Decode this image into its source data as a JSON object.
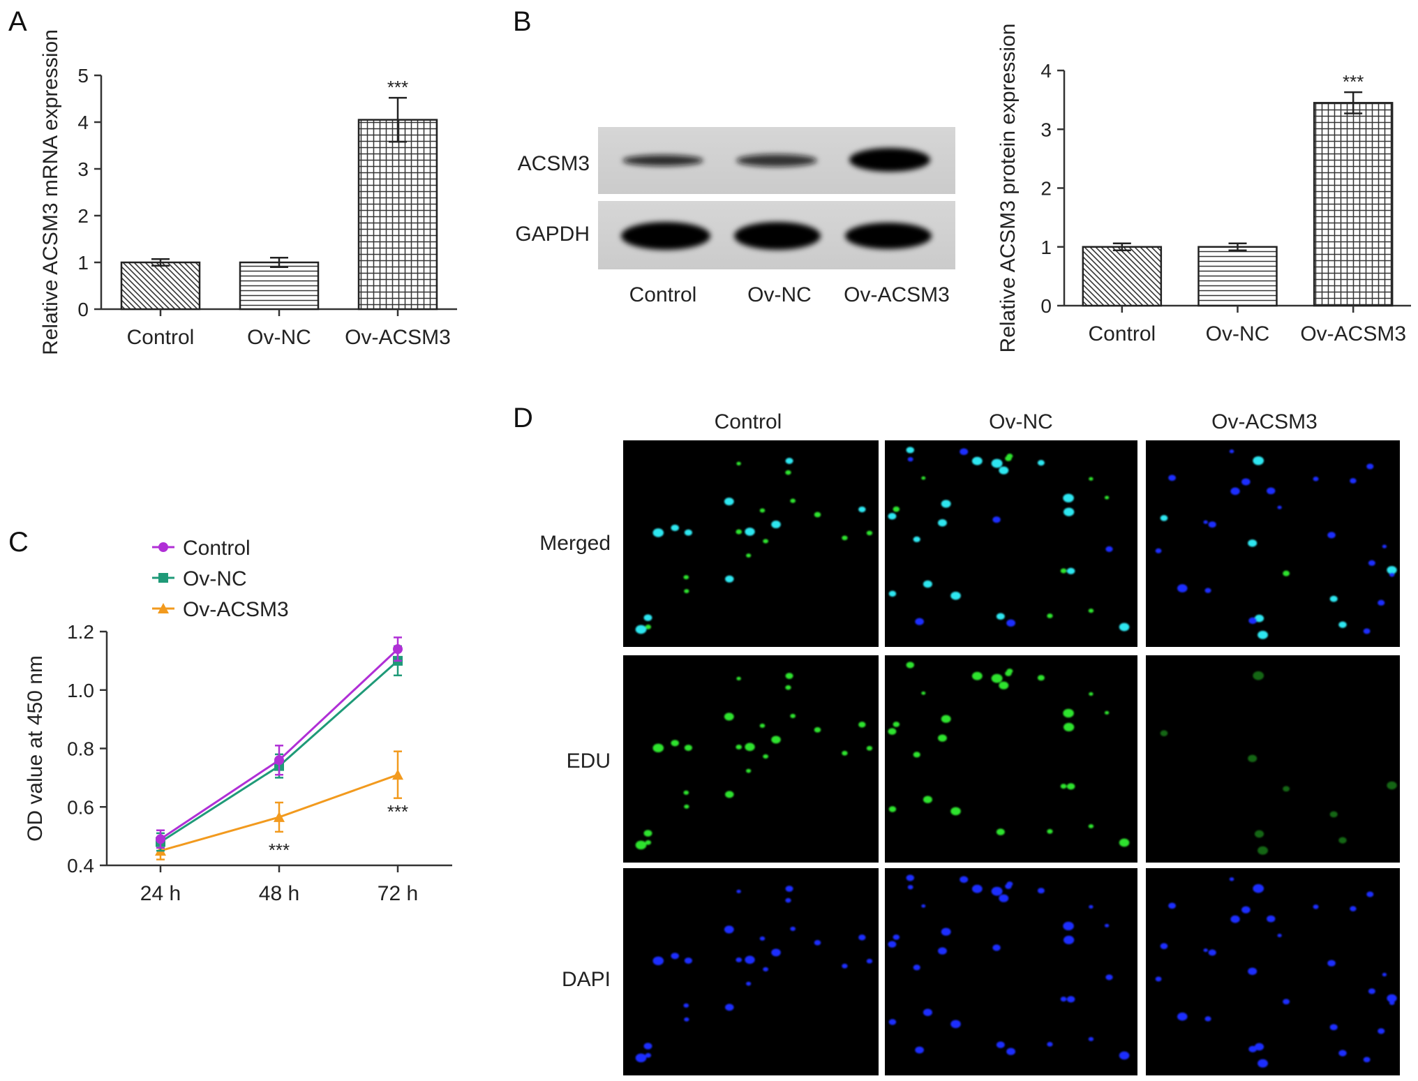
{
  "panels": {
    "A": {
      "letter": "A"
    },
    "B": {
      "letter": "B"
    },
    "C": {
      "letter": "C"
    },
    "D": {
      "letter": "D"
    }
  },
  "western_blot": {
    "rows": [
      "ACSM3",
      "GAPDH"
    ],
    "lanes": [
      "Control",
      "Ov-NC",
      "Ov-ACSM3"
    ]
  },
  "edu_panel": {
    "columns": [
      "Control",
      "Ov-NC",
      "Ov-ACSM3"
    ],
    "rows": [
      "Merged",
      "EDU",
      "DAPI"
    ]
  },
  "colors": {
    "control_line": "#b02fd6",
    "ovnc_line": "#1f9a78",
    "ovacsm3_line": "#f29a1e",
    "edu_green": "#2fe32f",
    "dapi_blue": "#1f2fff",
    "merged_cyan": "#2fe6f0"
  },
  "chart_data": [
    {
      "id": "A",
      "type": "bar",
      "categories": [
        "Control",
        "Ov-NC",
        "Ov-ACSM3"
      ],
      "values": [
        1.0,
        1.0,
        4.05
      ],
      "errors": [
        0.07,
        0.1,
        0.47
      ],
      "patterns": [
        "diagonal",
        "horizontal",
        "grid"
      ],
      "significance": [
        "",
        "",
        "***"
      ],
      "ylabel": "Relative ACSM3 mRNA expression",
      "ylim": [
        0,
        5
      ],
      "yticks": [
        0,
        1,
        2,
        3,
        4,
        5
      ]
    },
    {
      "id": "B",
      "type": "bar",
      "categories": [
        "Control",
        "Ov-NC",
        "Ov-ACSM3"
      ],
      "values": [
        1.0,
        1.0,
        3.45
      ],
      "errors": [
        0.06,
        0.06,
        0.18
      ],
      "patterns": [
        "diagonal",
        "horizontal",
        "grid"
      ],
      "significance": [
        "",
        "",
        "***"
      ],
      "ylabel": "Relative ACSM3 protein expression",
      "ylim": [
        0,
        4
      ],
      "yticks": [
        0,
        1,
        2,
        3,
        4
      ]
    },
    {
      "id": "C",
      "type": "line",
      "x": [
        "24 h",
        "48 h",
        "72 h"
      ],
      "series": [
        {
          "name": "Control",
          "values": [
            0.49,
            0.76,
            1.14
          ],
          "errors": [
            0.03,
            0.05,
            0.04
          ],
          "marker": "circle"
        },
        {
          "name": "Ov-NC",
          "values": [
            0.48,
            0.74,
            1.1
          ],
          "errors": [
            0.03,
            0.04,
            0.05
          ],
          "marker": "square"
        },
        {
          "name": "Ov-ACSM3",
          "values": [
            0.45,
            0.565,
            0.71
          ],
          "errors": [
            0.03,
            0.05,
            0.08
          ],
          "marker": "triangle"
        }
      ],
      "significance": [
        "",
        "***",
        "***"
      ],
      "ylabel": "OD value at 450 nm",
      "ylim": [
        0.4,
        1.2
      ],
      "yticks": [
        "0.4",
        "0.6",
        "0.8",
        "1.0",
        "1.2"
      ],
      "legend": "top-left"
    }
  ]
}
